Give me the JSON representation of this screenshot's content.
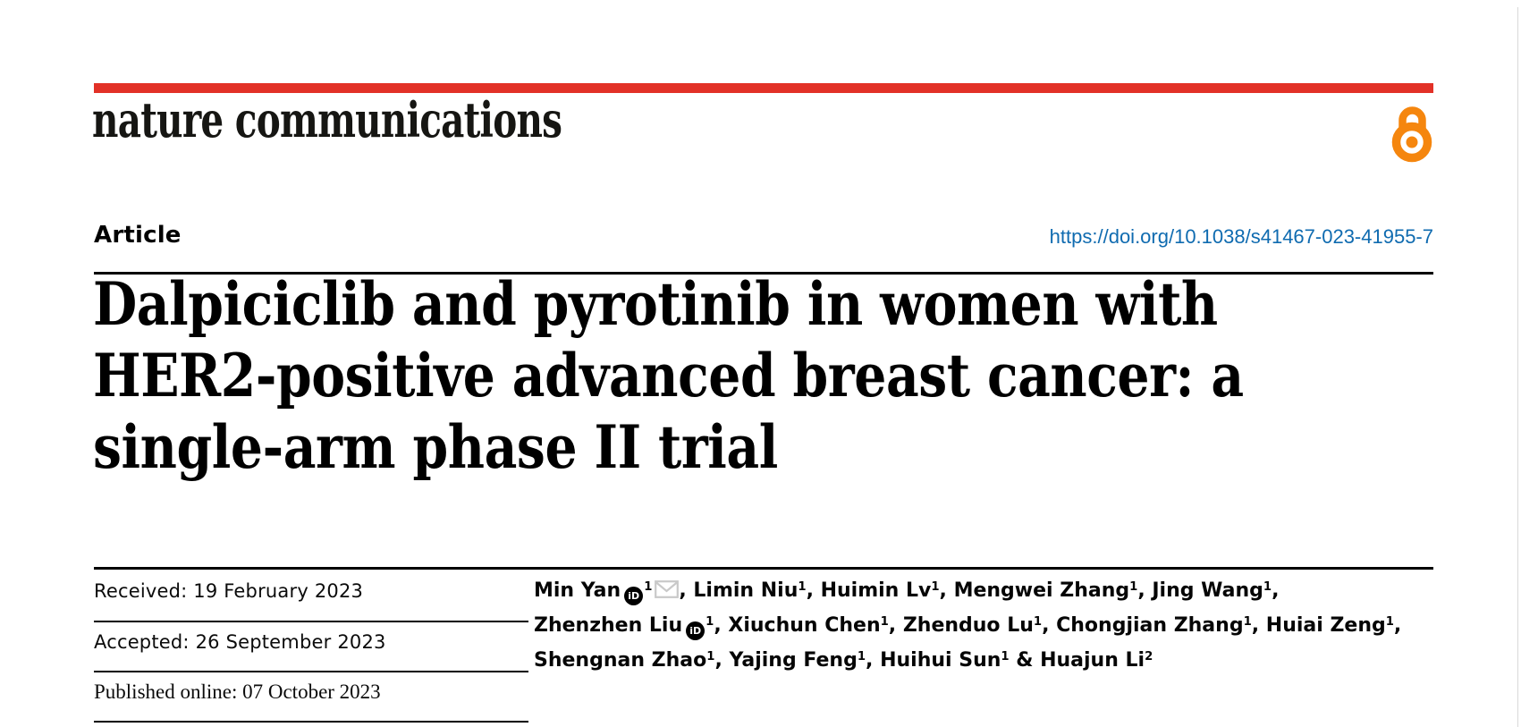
{
  "colors": {
    "accent_red": "#e23127",
    "open_access_orange": "#f5860e",
    "link_blue": "#0f6bb0",
    "logo_black": "#161613",
    "rule_black": "#000000",
    "envelope_gray": "#c9c9c9",
    "page_edge_gray": "#d9d9d9"
  },
  "icons": {
    "open_access": "open-padlock",
    "orcid_glyph": "iD",
    "email": "envelope"
  },
  "masthead": {
    "journal_name": "nature communications"
  },
  "article_header": {
    "article_type": "Article",
    "doi_link": "https://doi.org/10.1038/s41467-023-41955-7"
  },
  "title": {
    "lines": [
      "Dalpiciclib and pyrotinib in women with",
      "HER2-positive advanced breast cancer: a",
      "single-arm phase II trial"
    ]
  },
  "history": {
    "received": "Received: 19 February 2023",
    "accepted": "Accepted: 26 September 2023",
    "published": "Published online: 07 October 2023"
  },
  "authors": {
    "lines": [
      [
        {
          "name": "Min Yan",
          "sup": "1",
          "orcid": true,
          "email": true,
          "sep": ", "
        },
        {
          "name": "Limin Niu",
          "sup": "1",
          "sep": ", "
        },
        {
          "name": "Huimin Lv",
          "sup": "1",
          "sep": ", "
        },
        {
          "name": "Mengwei Zhang",
          "sup": "1",
          "sep": ", "
        },
        {
          "name": "Jing Wang",
          "sup": "1",
          "sep": ","
        }
      ],
      [
        {
          "name": "Zhenzhen Liu",
          "sup": "1",
          "orcid": true,
          "sep": ", "
        },
        {
          "name": "Xiuchun Chen",
          "sup": "1",
          "sep": ", "
        },
        {
          "name": "Zhenduo Lu",
          "sup": "1",
          "sep": ", "
        },
        {
          "name": "Chongjian Zhang",
          "sup": "1",
          "sep": ", "
        },
        {
          "name": "Huiai Zeng",
          "sup": "1",
          "sep": ","
        }
      ],
      [
        {
          "name": "Shengnan Zhao",
          "sup": "1",
          "sep": ", "
        },
        {
          "name": "Yajing Feng",
          "sup": "1",
          "sep": ", "
        },
        {
          "name": "Huihui Sun",
          "sup": "1",
          "sep": " & "
        },
        {
          "name": "Huajun Li",
          "sup": "2",
          "sep": ""
        }
      ]
    ]
  }
}
